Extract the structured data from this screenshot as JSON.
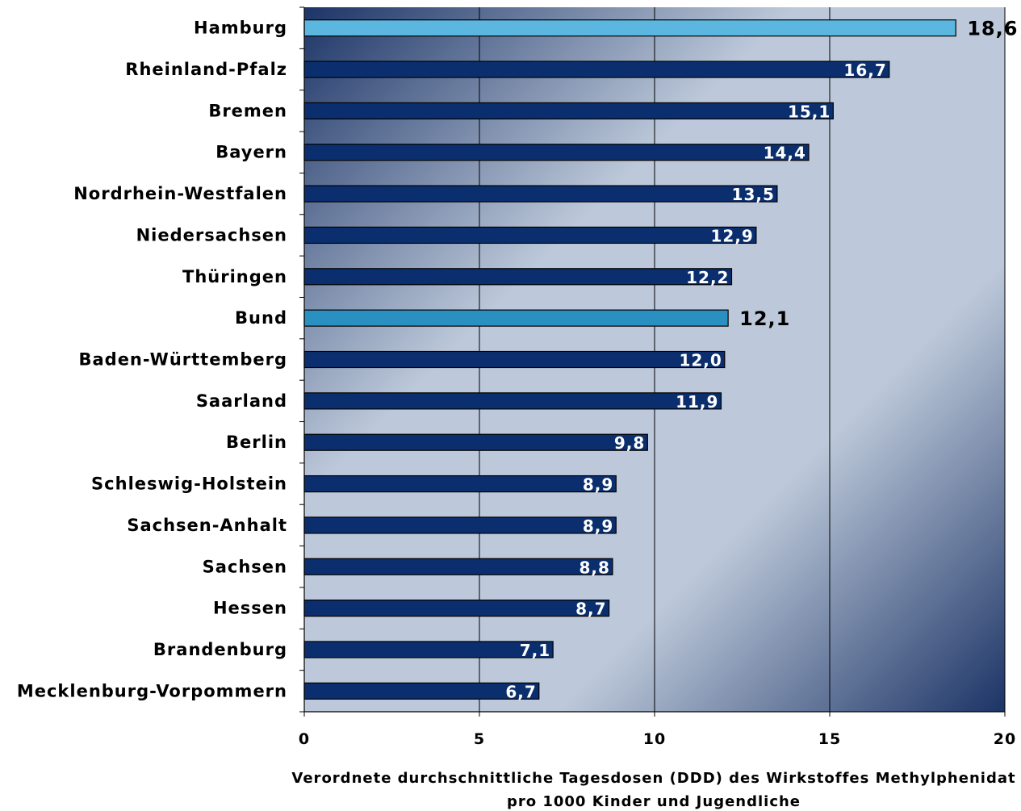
{
  "chart_data": {
    "type": "bar",
    "orientation": "horizontal",
    "categories": [
      "Hamburg",
      "Rheinland-Pfalz",
      "Bremen",
      "Bayern",
      "Nordrhein-Westfalen",
      "Niedersachsen",
      "Thüringen",
      "Bund",
      "Baden-Württemberg",
      "Saarland",
      "Berlin",
      "Schleswig-Holstein",
      "Sachsen-Anhalt",
      "Sachsen",
      "Hessen",
      "Brandenburg",
      "Mecklenburg-Vorpommern"
    ],
    "values": [
      18.6,
      16.7,
      15.1,
      14.4,
      13.5,
      12.9,
      12.2,
      12.1,
      12.0,
      11.9,
      9.8,
      8.9,
      8.9,
      8.8,
      8.7,
      7.1,
      6.7
    ],
    "value_labels": [
      "18,6",
      "16,7",
      "15,1",
      "14,4",
      "13,5",
      "12,9",
      "12,2",
      "12,1",
      "12,0",
      "11,9",
      "9,8",
      "8,9",
      "8,9",
      "8,8",
      "8,7",
      "7,1",
      "6,7"
    ],
    "highlighted": [
      "Hamburg",
      "Bund"
    ],
    "xlim": [
      0,
      20
    ],
    "xticks": [
      0,
      5,
      10,
      15,
      20
    ],
    "xtick_labels": [
      "0",
      "5",
      "10",
      "15",
      "20"
    ],
    "xlabel_line1": "Verordnete durchschnittliche Tagesdosen (DDD) des Wirkstoffes Methylphenidat",
    "xlabel_line2": "pro 1000 Kinder und Jugendliche",
    "grid": true,
    "colors": {
      "bar": "#0b2f6e",
      "bar_highlight_hamburg": "#5bb6e0",
      "bar_highlight_bund": "#2a8fc1",
      "background_light": "#bdc9da",
      "background_dark": "#1c3466"
    }
  }
}
